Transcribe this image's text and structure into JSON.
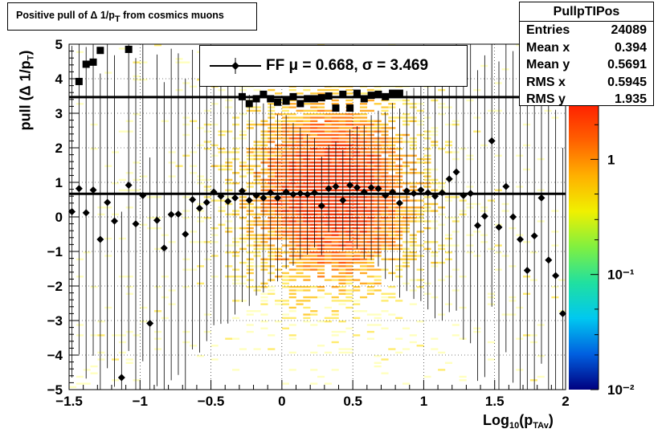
{
  "title": "Positive pull of Δ 1/pᵀ from cosmics muons",
  "title_parts": {
    "prefix": "Positive pull of ",
    "delta": "Δ",
    "mid": " 1/p",
    "sub": "T",
    "suffix": " from cosmics muons"
  },
  "stats": {
    "name": "PullpTIPos",
    "rows": [
      {
        "label": "Entries",
        "value": "24089"
      },
      {
        "label": "Mean x",
        "value": "0.394"
      },
      {
        "label": "Mean y",
        "value": "0.5691"
      },
      {
        "label": "RMS x",
        "value": "0.5945"
      },
      {
        "label": "RMS y",
        "value": "1.935"
      }
    ]
  },
  "legend": {
    "text": "FF μ =  0.668, σ =   3.469"
  },
  "xlabel_parts": {
    "main": "Log",
    "sub1": "10",
    "mid": "(p",
    "sub2": "TAv",
    "end": ")"
  },
  "ylabel_parts": {
    "main": "pull (Δ 1/p",
    "sub": "T",
    "end": ")"
  },
  "colorbar": {
    "ticks": [
      {
        "value": 1,
        "label": "1"
      },
      {
        "value": 0.1,
        "label": "10⁻¹"
      },
      {
        "value": 0.01,
        "label": "10⁻²"
      }
    ],
    "stops": [
      "#000080",
      "#0060e0",
      "#00c8f0",
      "#20e0a0",
      "#80f040",
      "#f0f000",
      "#ffb000",
      "#ff6000",
      "#ff2000"
    ]
  },
  "chart_data": {
    "type": "heatmap",
    "xlim": [
      -1.5,
      2
    ],
    "ylim": [
      -5,
      5
    ],
    "xticks": [
      {
        "v": -1.5,
        "label": "−1.5"
      },
      {
        "v": -1,
        "label": "−1"
      },
      {
        "v": -0.5,
        "label": "−0.5"
      },
      {
        "v": 0,
        "label": "0"
      },
      {
        "v": 0.5,
        "label": "0.5"
      },
      {
        "v": 1,
        "label": "1"
      },
      {
        "v": 1.5,
        "label": "1.5"
      },
      {
        "v": 2,
        "label": "2"
      }
    ],
    "yticks": [
      {
        "v": -5,
        "label": "−5"
      },
      {
        "v": -4,
        "label": "−4"
      },
      {
        "v": -3,
        "label": "−3"
      },
      {
        "v": -2,
        "label": "−2"
      },
      {
        "v": -1,
        "label": "−1"
      },
      {
        "v": 0,
        "label": "0"
      },
      {
        "v": 1,
        "label": "1"
      },
      {
        "v": 2,
        "label": "2"
      },
      {
        "v": 3,
        "label": "3"
      },
      {
        "v": 4,
        "label": "4"
      },
      {
        "v": 5,
        "label": "5"
      }
    ],
    "mean_line": 0.668,
    "sigma_line": 3.469,
    "mean_points": {
      "x": [
        -1.48,
        -1.43,
        -1.38,
        -1.33,
        -1.28,
        -1.23,
        -1.18,
        -1.13,
        -1.08,
        -1.03,
        -0.98,
        -0.93,
        -0.88,
        -0.83,
        -0.78,
        -0.73,
        -0.68,
        -0.63,
        -0.58,
        -0.53,
        -0.48,
        -0.43,
        -0.38,
        -0.33,
        -0.28,
        -0.23,
        -0.18,
        -0.13,
        -0.08,
        -0.03,
        0.03,
        0.08,
        0.13,
        0.18,
        0.23,
        0.28,
        0.33,
        0.38,
        0.43,
        0.48,
        0.53,
        0.58,
        0.63,
        0.68,
        0.73,
        0.78,
        0.83,
        0.88,
        0.93,
        0.98,
        1.03,
        1.08,
        1.13,
        1.18,
        1.23,
        1.28,
        1.33,
        1.38,
        1.43,
        1.48,
        1.53,
        1.58,
        1.63,
        1.68,
        1.73,
        1.78,
        1.83,
        1.88,
        1.93,
        1.98
      ],
      "y": [
        0.15,
        0.82,
        0.12,
        0.78,
        -0.65,
        0.42,
        -0.12,
        -4.65,
        0.92,
        -0.2,
        0.62,
        -3.08,
        -0.1,
        -0.9,
        0.07,
        0.08,
        -0.5,
        0.5,
        0.25,
        0.42,
        0.72,
        0.6,
        0.45,
        0.55,
        0.75,
        0.48,
        0.62,
        0.55,
        0.7,
        0.55,
        0.72,
        0.65,
        0.68,
        0.65,
        0.7,
        0.32,
        0.82,
        0.88,
        0.48,
        0.92,
        0.85,
        0.72,
        0.85,
        0.82,
        0.62,
        0.72,
        0.4,
        0.75,
        0.68,
        0.78,
        0.7,
        0.6,
        0.7,
        1.1,
        1.3,
        0.62,
        0.68,
        -0.25,
        0.02,
        2.2,
        -0.3,
        0.88,
        0,
        -0.65,
        -1.55,
        -0.55,
        0.55,
        -1.25,
        -1.7,
        -2.8
      ]
    },
    "sigma_points": {
      "x": [
        -1.43,
        -1.38,
        -1.33,
        -1.28,
        -1.08,
        -0.28,
        -0.23,
        -0.18,
        -0.13,
        -0.08,
        -0.03,
        0.03,
        0.08,
        0.13,
        0.18,
        0.23,
        0.28,
        0.33,
        0.38,
        0.43,
        0.48,
        0.53,
        0.58,
        0.63,
        0.68,
        0.73,
        0.78,
        0.83
      ],
      "y": [
        3.92,
        4.42,
        4.48,
        4.82,
        4.85,
        3.48,
        3.28,
        3.42,
        3.55,
        3.42,
        3.32,
        3.35,
        3.48,
        3.28,
        3.42,
        3.42,
        3.45,
        3.5,
        3.15,
        3.55,
        3.15,
        3.58,
        3.42,
        3.52,
        3.55,
        3.48,
        3.58,
        3.58
      ]
    }
  }
}
